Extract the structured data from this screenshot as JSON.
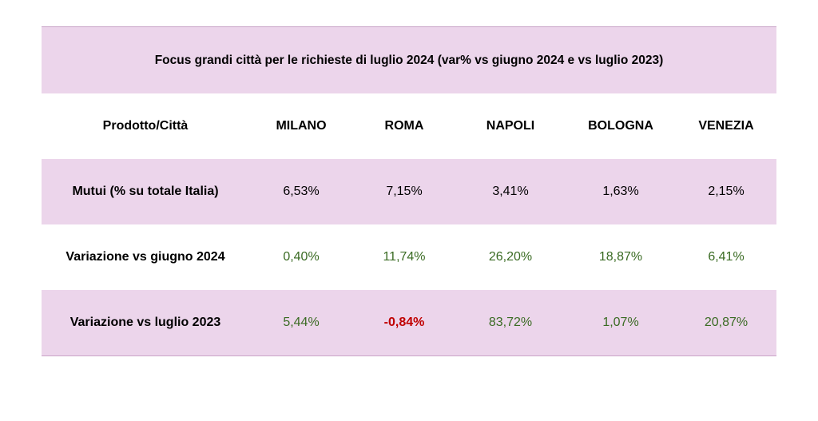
{
  "title": "Focus grandi città per le richieste di luglio 2024 (var% vs giugno 2024 e vs luglio 2023)",
  "header": {
    "first": "Prodotto/Città",
    "cities": [
      "MILANO",
      "ROMA",
      "NAPOLI",
      "BOLOGNA",
      "VENEZIA"
    ]
  },
  "rows": [
    {
      "label": "Mutui (% su totale Italia)",
      "values": [
        "6,53%",
        "7,15%",
        "3,41%",
        "1,63%",
        "2,15%"
      ]
    },
    {
      "label": "Variazione vs giugno 2024",
      "values": [
        "0,40%",
        "11,74%",
        "26,20%",
        "18,87%",
        "6,41%"
      ]
    },
    {
      "label": "Variazione vs luglio 2023",
      "values": [
        "5,44%",
        "-0,84%",
        "83,72%",
        "1,07%",
        "20,87%"
      ]
    }
  ],
  "colors": {
    "band": "#ecd5eb",
    "positive": "#3a6b23",
    "negative": "#c00000"
  }
}
